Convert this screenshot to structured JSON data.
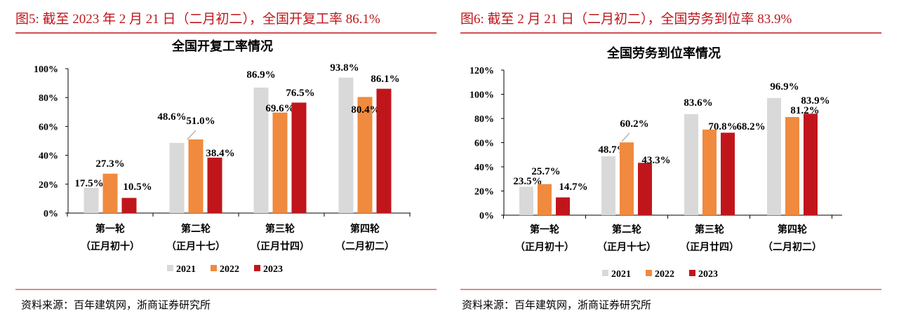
{
  "figures": [
    {
      "caption": "图5:  截至 2023 年 2 月 21 日（二月初二），全国开复工率 86.1%",
      "source": "资料来源：百年建筑网，浙商证券研究所"
    },
    {
      "caption": "图6:  截至 2 月 21 日（二月初二），全国劳务到位率 83.9%",
      "source": "资料来源：百年建筑网，浙商证券研究所"
    }
  ],
  "colors": {
    "accent": "#c0161b",
    "2021": "#d9d9d9",
    "2022": "#f08a3e",
    "2023": "#c0161b"
  },
  "chart_data": [
    {
      "type": "bar",
      "title": "全国开复工率情况",
      "categories": [
        [
          "第一轮",
          "（正月初十）"
        ],
        [
          "第二轮",
          "（正月十七）"
        ],
        [
          "第三轮",
          "（正月廿四）"
        ],
        [
          "第四轮",
          "（二月初二）"
        ]
      ],
      "series": [
        {
          "name": "2021",
          "values": [
            17.5,
            48.6,
            86.9,
            93.8
          ]
        },
        {
          "name": "2022",
          "values": [
            27.3,
            51.0,
            69.6,
            80.4
          ]
        },
        {
          "name": "2023",
          "values": [
            10.5,
            38.4,
            76.5,
            86.1
          ]
        }
      ],
      "ylim": [
        0,
        100
      ],
      "yticks": [
        "0%",
        "20%",
        "40%",
        "60%",
        "80%",
        "100%"
      ],
      "legend": "bottom",
      "grid": false
    },
    {
      "type": "bar",
      "title": "全国劳务到位率情况",
      "categories": [
        [
          "第一轮",
          "（正月初十）"
        ],
        [
          "第二轮",
          "（正月十七）"
        ],
        [
          "第三轮",
          "（正月廿四）"
        ],
        [
          "第四轮",
          "（二月初二）"
        ]
      ],
      "series": [
        {
          "name": "2021",
          "values": [
            23.5,
            48.7,
            83.6,
            96.9
          ]
        },
        {
          "name": "2022",
          "values": [
            25.7,
            60.2,
            70.8,
            81.2
          ]
        },
        {
          "name": "2023",
          "values": [
            14.7,
            43.3,
            68.2,
            83.9
          ]
        }
      ],
      "ylim": [
        0,
        120
      ],
      "yticks": [
        "0%",
        "20%",
        "40%",
        "60%",
        "80%",
        "100%",
        "120%"
      ],
      "legend": "bottom",
      "grid": false
    }
  ]
}
